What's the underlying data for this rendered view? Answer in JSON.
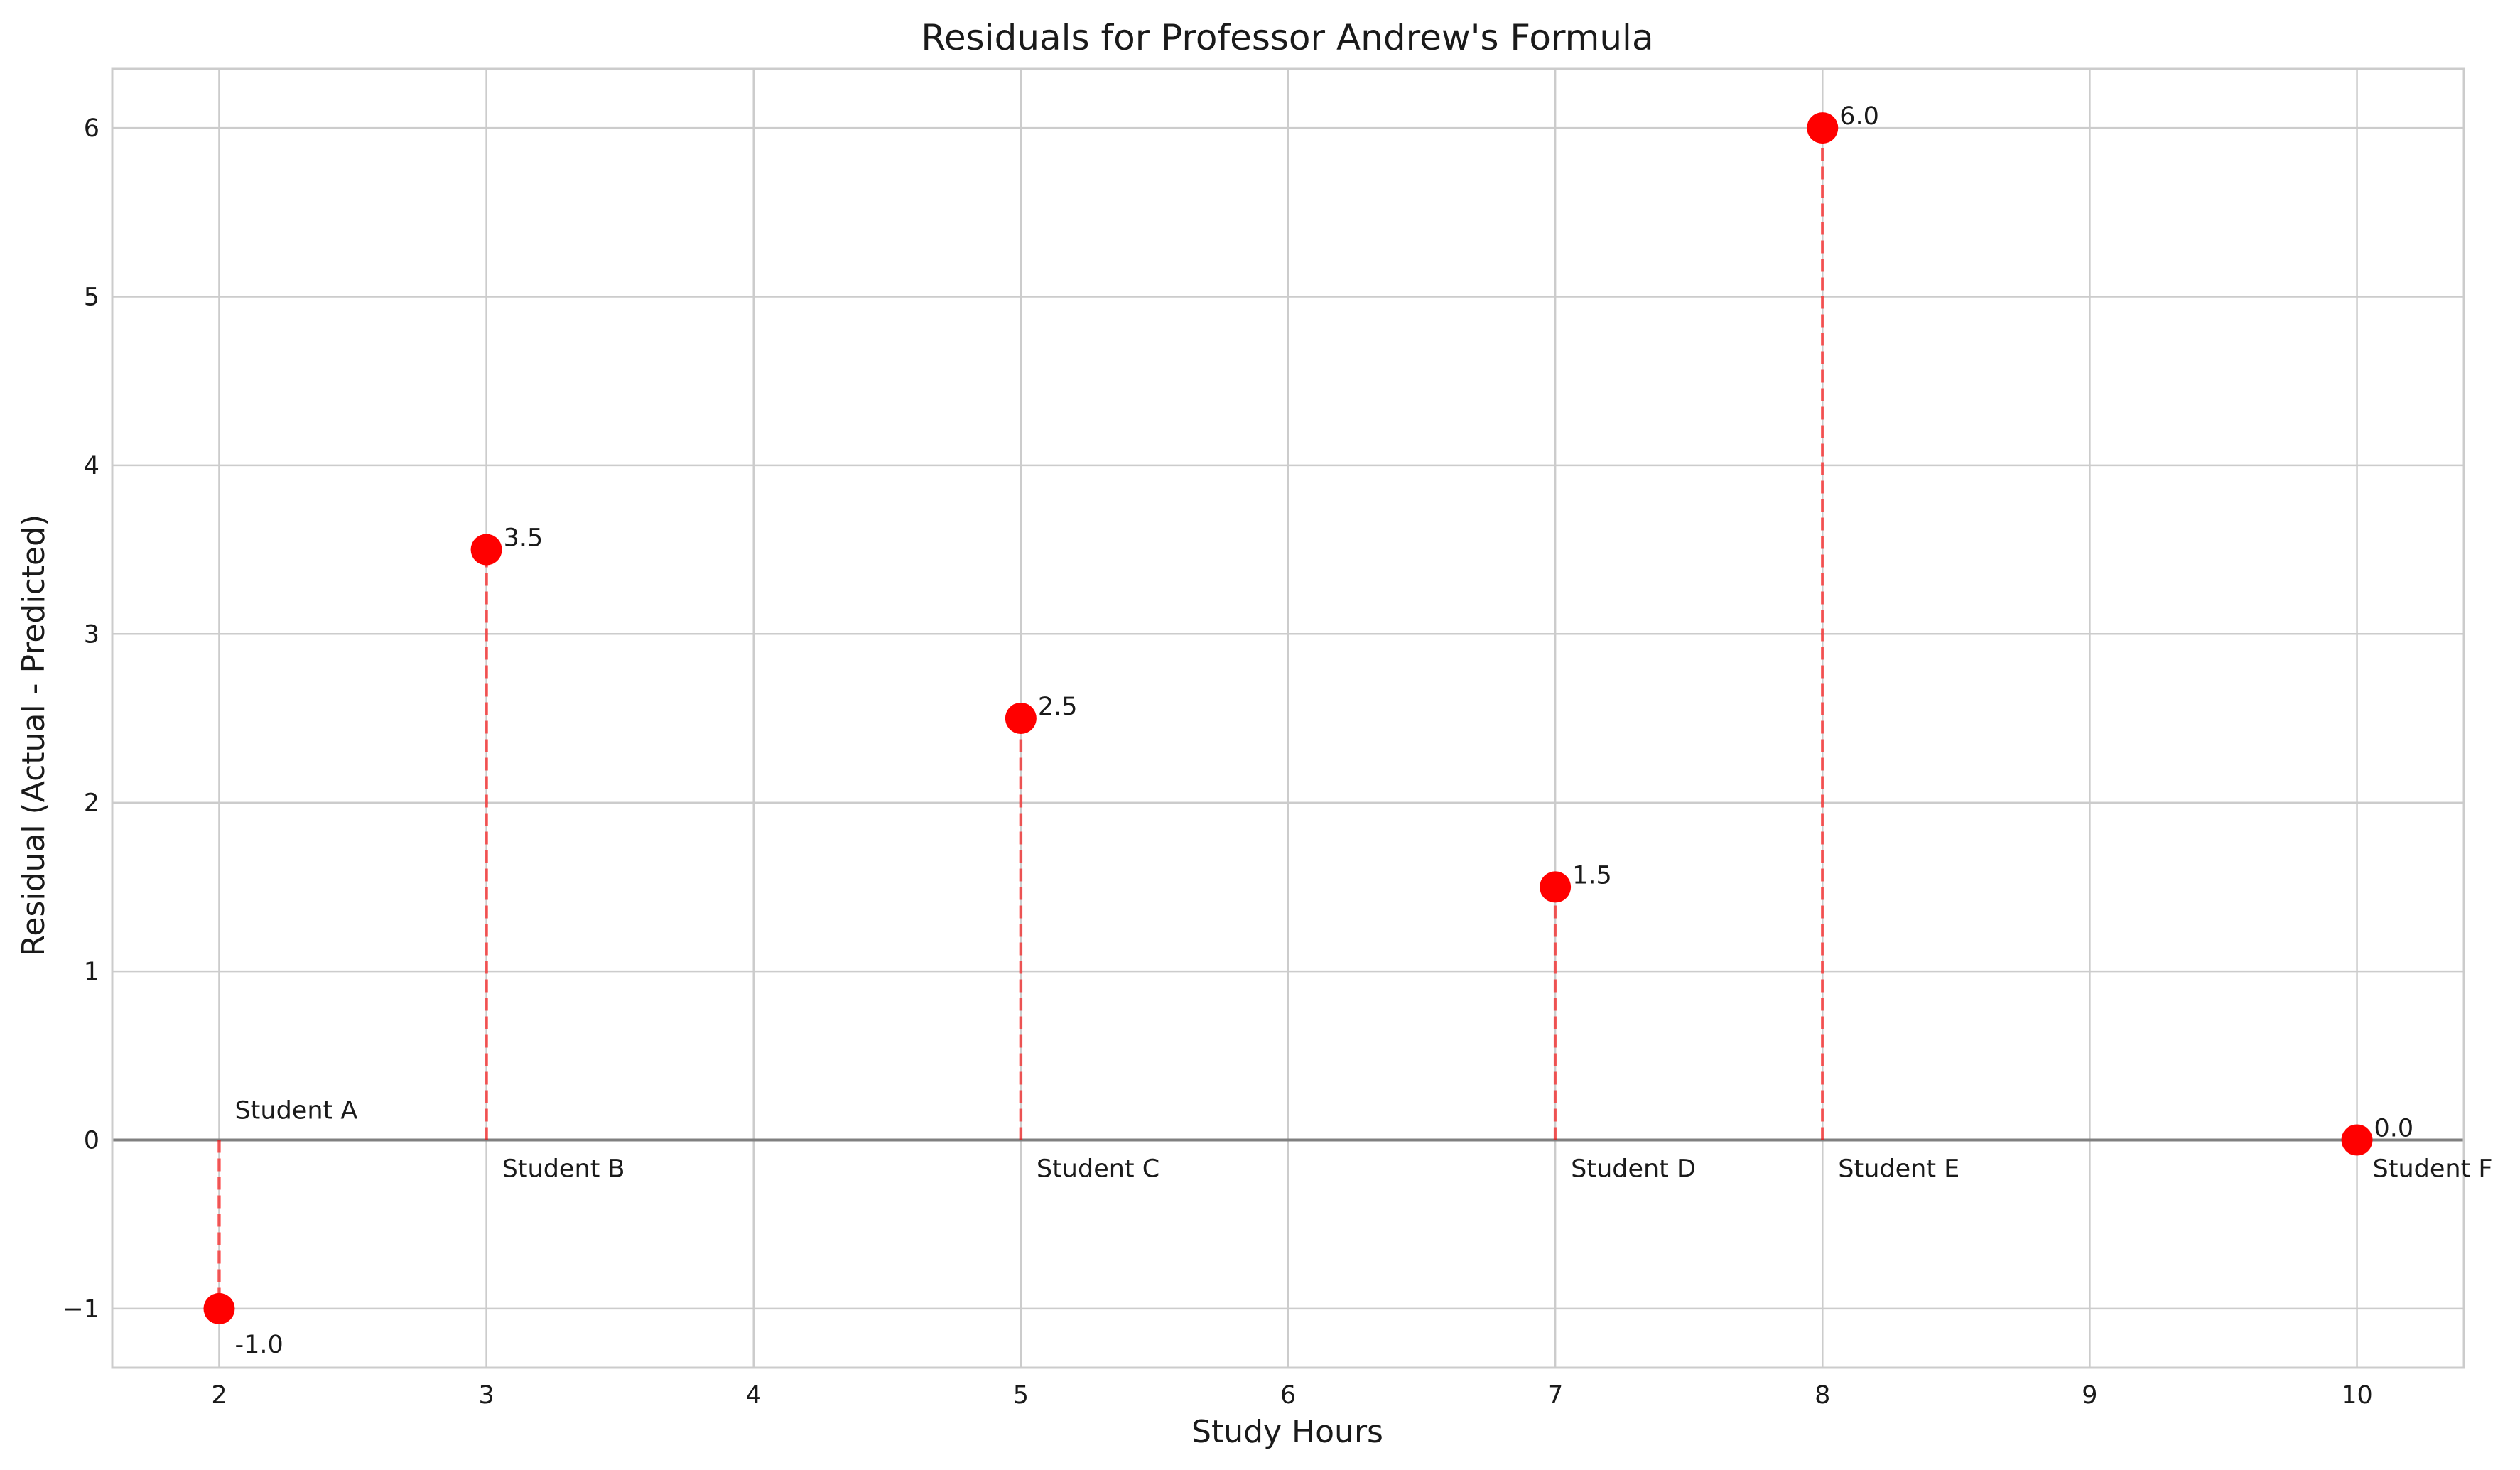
{
  "chart_data": {
    "type": "scatter",
    "title": "Residuals for Professor Andrew's Formula",
    "xlabel": "Study Hours",
    "ylabel": "Residual (Actual - Predicted)",
    "xlim": [
      1.6,
      10.4
    ],
    "ylim": [
      -1.35,
      6.35
    ],
    "xticks": [
      2,
      3,
      4,
      5,
      6,
      7,
      8,
      9,
      10
    ],
    "yticks": [
      -1,
      0,
      1,
      2,
      3,
      4,
      5,
      6
    ],
    "xtick_labels": [
      "2",
      "3",
      "4",
      "5",
      "6",
      "7",
      "8",
      "9",
      "10"
    ],
    "ytick_labels": [
      "−1",
      "0",
      "1",
      "2",
      "3",
      "4",
      "5",
      "6"
    ],
    "grid": true,
    "points": [
      {
        "label": "Student A",
        "x": 2,
        "y": -1.0,
        "value_label": "-1.0"
      },
      {
        "label": "Student B",
        "x": 3,
        "y": 3.5,
        "value_label": "3.5"
      },
      {
        "label": "Student C",
        "x": 5,
        "y": 2.5,
        "value_label": "2.5"
      },
      {
        "label": "Student D",
        "x": 7,
        "y": 1.5,
        "value_label": "1.5"
      },
      {
        "label": "Student E",
        "x": 8,
        "y": 6.0,
        "value_label": "6.0"
      },
      {
        "label": "Student F",
        "x": 10,
        "y": 0.0,
        "value_label": "0.0"
      }
    ],
    "colors": {
      "point": "#ff0000",
      "zero_line": "#808080",
      "grid": "#cccccc"
    }
  }
}
